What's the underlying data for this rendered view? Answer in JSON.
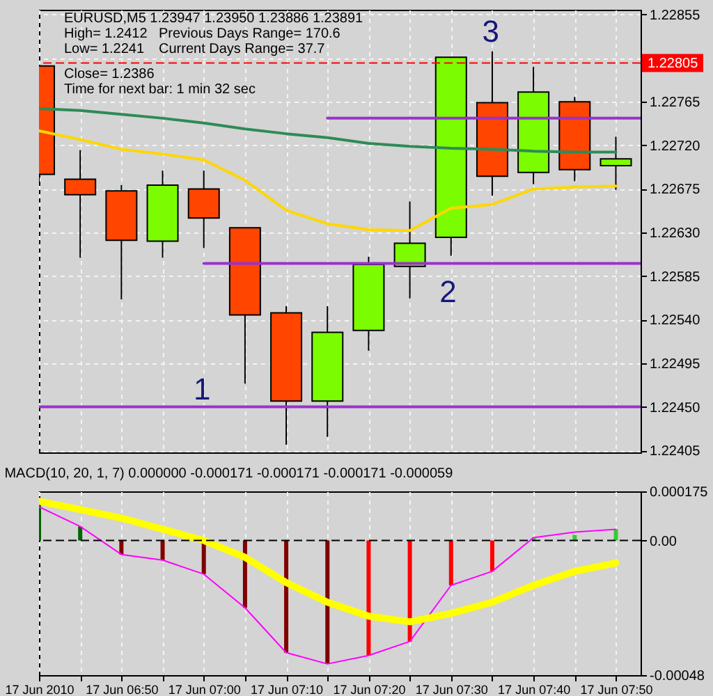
{
  "chart_data": [
    {
      "type": "candlestick",
      "title": "EURUSD,M5  1.23947 1.23950 1.23886 1.23891",
      "annotations": [
        "High= 1.2412",
        "Previous Days Range= 170.6",
        "Low= 1.2241",
        "Current Days Range= 37.7",
        "Close= 1.2386",
        "Time for next bar: 1 min 32 sec",
        "1",
        "2",
        "3"
      ],
      "x": [
        "2010-06-17T06:40",
        "2010-06-17T06:45",
        "2010-06-17T06:50",
        "2010-06-17T06:55",
        "2010-06-17T07:00",
        "2010-06-17T07:05",
        "2010-06-17T07:10",
        "2010-06-17T07:15",
        "2010-06-17T07:20",
        "2010-06-17T07:25",
        "2010-06-17T07:30",
        "2010-06-17T07:35",
        "2010-06-17T07:40",
        "2010-06-17T07:45",
        "2010-06-17T07:50"
      ],
      "ohlc": [
        [
          1.22802,
          1.22802,
          1.22682,
          1.2269
        ],
        [
          1.22685,
          1.22715,
          1.22604,
          1.22669
        ],
        [
          1.22673,
          1.22679,
          1.22561,
          1.22622
        ],
        [
          1.22621,
          1.22694,
          1.22604,
          1.22679
        ],
        [
          1.22675,
          1.22694,
          1.22614,
          1.22645
        ],
        [
          1.22635,
          1.22635,
          1.22474,
          1.22545
        ],
        [
          1.22547,
          1.22554,
          1.22411,
          1.22456
        ],
        [
          1.22456,
          1.22554,
          1.22419,
          1.22527
        ],
        [
          1.22529,
          1.22605,
          1.22508,
          1.22597
        ],
        [
          1.22595,
          1.22662,
          1.22562,
          1.22619
        ],
        [
          1.22625,
          1.22811,
          1.22606,
          1.22811
        ],
        [
          1.22764,
          1.22817,
          1.22668,
          1.22688
        ],
        [
          1.22692,
          1.22801,
          1.2268,
          1.22775
        ],
        [
          1.22765,
          1.2277,
          1.22683,
          1.22695
        ],
        [
          1.22699,
          1.22729,
          1.22674,
          1.22706
        ]
      ],
      "colors": [
        "#ff4500",
        "#ff4500",
        "#ff4500",
        "#7cfc00",
        "#ff4500",
        "#ff4500",
        "#ff4500",
        "#7cfc00",
        "#7cfc00",
        "#7cfc00",
        "#7cfc00",
        "#ff4500",
        "#7cfc00",
        "#ff4500",
        "#7cfc00"
      ],
      "series": [
        {
          "type": "line",
          "color": "#2e8b57",
          "values": [
            1.22758,
            1.22756,
            1.22752,
            1.22748,
            1.22743,
            1.22737,
            1.22732,
            1.22728,
            1.22722,
            1.22719,
            1.22717,
            1.22716,
            1.22714,
            1.22713,
            1.22713
          ]
        },
        {
          "type": "line",
          "color": "#ffd700",
          "values": [
            1.22735,
            1.22726,
            1.22716,
            1.22711,
            1.22705,
            1.22684,
            1.22653,
            1.22639,
            1.22633,
            1.22632,
            1.22655,
            1.22659,
            1.22675,
            1.22677,
            1.22678
          ]
        },
        {
          "type": "line",
          "color": "#9932cc",
          "x": [
            "2010-06-17T06:40",
            "2010-06-17T07:53"
          ],
          "values": [
            1.2245,
            1.2245
          ]
        },
        {
          "type": "line",
          "color": "#9932cc",
          "x": [
            "2010-06-17T07:00",
            "2010-06-17T07:53"
          ],
          "values": [
            1.22598,
            1.22598
          ]
        },
        {
          "type": "line",
          "color": "#9932cc",
          "x": [
            "2010-06-17T07:15",
            "2010-06-17T07:53"
          ],
          "values": [
            1.22748,
            1.22748
          ]
        }
      ],
      "ref_lines": [
        {
          "axis": "y",
          "value": 1.22805,
          "label": "1.22805",
          "color": "#ff0000",
          "line_style": "dashed"
        }
      ],
      "xlim": [
        "2010-06-17T06:40",
        "2010-06-17T07:53"
      ],
      "xticks": [
        {
          "value": "2010-06-17T06:40",
          "label": null
        },
        {
          "value": "2010-06-17T06:45",
          "label": null
        },
        {
          "value": "2010-06-17T06:50",
          "label": null
        },
        {
          "value": "2010-06-17T06:55",
          "label": null
        },
        {
          "value": "2010-06-17T07:00",
          "label": null
        },
        {
          "value": "2010-06-17T07:05",
          "label": null
        },
        {
          "value": "2010-06-17T07:10",
          "label": null
        },
        {
          "value": "2010-06-17T07:15",
          "label": null
        },
        {
          "value": "2010-06-17T07:20",
          "label": null
        },
        {
          "value": "2010-06-17T07:25",
          "label": null
        },
        {
          "value": "2010-06-17T07:30",
          "label": null
        },
        {
          "value": "2010-06-17T07:35",
          "label": null
        },
        {
          "value": "2010-06-17T07:40",
          "label": null
        },
        {
          "value": "2010-06-17T07:45",
          "label": null
        },
        {
          "value": "2010-06-17T07:50",
          "label": null
        }
      ],
      "ylim": [
        1.22403,
        1.2286
      ],
      "yticks": [
        1.22405,
        {
          "value": 1.2245,
          "label": "1.22450"
        },
        1.22495,
        {
          "value": 1.2254,
          "label": "1.22540"
        },
        1.22585,
        {
          "value": 1.2263,
          "label": "1.22630"
        },
        1.22675,
        {
          "value": 1.2272,
          "label": "1.22720"
        },
        1.22765,
        {
          "value": 1.2281,
          "label": null
        },
        1.22855
      ],
      "grid": true,
      "tick_labels": "y"
    },
    {
      "type": "bar",
      "title": "MACD(10, 20, 1, 7) 0.000000 -0.000171 -0.000171 -0.000171 -0.000059",
      "x": [
        "2010-06-17T06:40",
        "2010-06-17T06:45",
        "2010-06-17T06:50",
        "2010-06-17T06:55",
        "2010-06-17T07:00",
        "2010-06-17T07:05",
        "2010-06-17T07:10",
        "2010-06-17T07:15",
        "2010-06-17T07:20",
        "2010-06-17T07:25",
        "2010-06-17T07:30",
        "2010-06-17T07:35",
        "2010-06-17T07:40",
        "2010-06-17T07:45",
        "2010-06-17T07:50"
      ],
      "series": [
        {
          "colors": [
            "#006400",
            "#006400",
            "#800000",
            "#800000",
            "#800000",
            "#800000",
            "#800000",
            "#800000",
            "#ff0000",
            "#ff0000",
            "#ff0000",
            "#ff0000",
            "#32cd32",
            "#32cd32",
            "#32cd32"
          ],
          "values": [
            0.00013,
            5e-05,
            -5e-05,
            -7e-05,
            -0.00012,
            -0.00024,
            -0.0004,
            -0.00044,
            -0.00041,
            -0.00036,
            -0.00016,
            -0.00011,
            1e-05,
            2e-05,
            4e-05
          ]
        },
        {
          "type": "line",
          "color": "#ff00ff",
          "values": [
            0.00012,
            5e-05,
            -5e-05,
            -7e-05,
            -0.00012,
            -0.00024,
            -0.0004,
            -0.00044,
            -0.00041,
            -0.00036,
            -0.00016,
            -0.00011,
            1e-05,
            3e-05,
            4e-05
          ]
        },
        {
          "type": "line",
          "color": "#ffff00",
          "values": [
            0.00014,
            0.00011,
            8e-05,
            4e-05,
            0,
            -6e-05,
            -0.00015,
            -0.00022,
            -0.00027,
            -0.00029,
            -0.00026,
            -0.00022,
            -0.00016,
            -0.00011,
            -8e-05
          ]
        }
      ],
      "ref_lines": [
        {
          "axis": "y",
          "value": 0,
          "color": "#000000",
          "line_style": "dashed"
        }
      ],
      "xlim": [
        "2010-06-17T06:40",
        "2010-06-17T07:53"
      ],
      "xticks": [
        {
          "value": "2010-06-17T06:40",
          "label": "17 Jun 2010"
        },
        {
          "value": "2010-06-17T06:45",
          "label": null
        },
        {
          "value": "2010-06-17T06:50",
          "label": "17 Jun 06:50"
        },
        {
          "value": "2010-06-17T06:55",
          "label": null
        },
        {
          "value": "2010-06-17T07:00",
          "label": "17 Jun 07:00"
        },
        {
          "value": "2010-06-17T07:05",
          "label": null
        },
        {
          "value": "2010-06-17T07:10",
          "label": "17 Jun 07:10"
        },
        {
          "value": "2010-06-17T07:15",
          "label": null
        },
        {
          "value": "2010-06-17T07:20",
          "label": "17 Jun 07:20"
        },
        {
          "value": "2010-06-17T07:25",
          "label": null
        },
        {
          "value": "2010-06-17T07:30",
          "label": "17 Jun 07:30"
        },
        {
          "value": "2010-06-17T07:35",
          "label": null
        },
        {
          "value": "2010-06-17T07:40",
          "label": "17 Jun 07:40"
        },
        {
          "value": "2010-06-17T07:45",
          "label": null
        },
        {
          "value": "2010-06-17T07:50",
          "label": "17 Jun 07:50"
        }
      ],
      "ylim": [
        -0.00048,
        0.000175
      ],
      "yticks": [
        0.000175,
        {
          "value": 0,
          "label": "0.00"
        },
        -0.00048
      ],
      "grid": "x"
    }
  ]
}
